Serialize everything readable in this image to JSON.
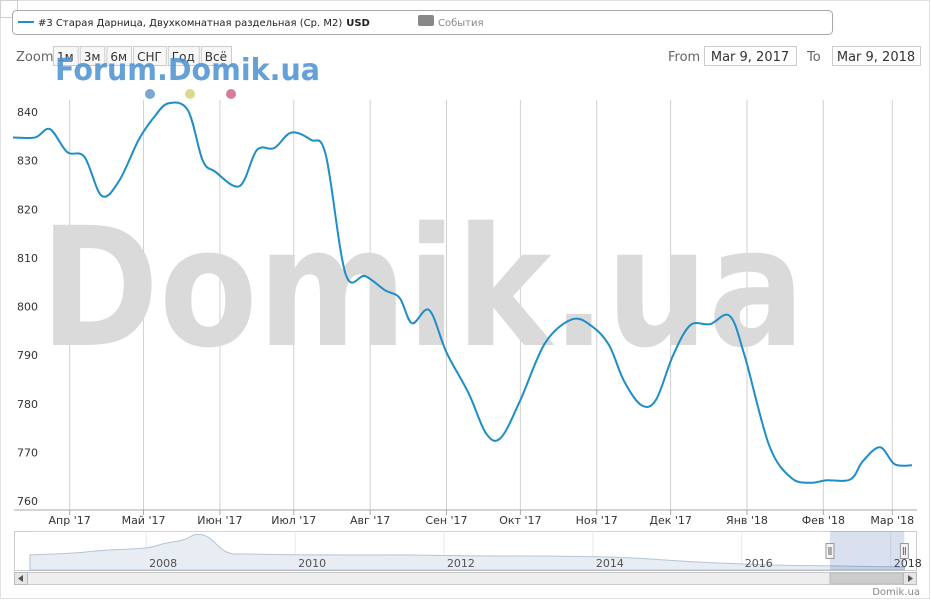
{
  "chart_data": [
    {
      "type": "line",
      "x": [
        "2017-03-09",
        "2017-03-18",
        "2017-03-24",
        "2017-03-31",
        "2017-04-07",
        "2017-04-14",
        "2017-04-21",
        "2017-04-29",
        "2017-05-05",
        "2017-05-11",
        "2017-05-19",
        "2017-05-25",
        "2017-05-30",
        "2017-06-09",
        "2017-06-16",
        "2017-06-23",
        "2017-06-30",
        "2017-07-08",
        "2017-07-14",
        "2017-07-22",
        "2017-07-30",
        "2017-08-07",
        "2017-08-13",
        "2017-08-18",
        "2017-08-25",
        "2017-09-01",
        "2017-09-10",
        "2017-09-17",
        "2017-09-23",
        "2017-10-01",
        "2017-10-11",
        "2017-10-22",
        "2017-10-30",
        "2017-11-06",
        "2017-11-12",
        "2017-11-19",
        "2017-11-25",
        "2017-12-02",
        "2017-12-09",
        "2017-12-17",
        "2017-12-25",
        "2017-12-31",
        "2018-01-10",
        "2018-01-19",
        "2018-01-27",
        "2018-02-02",
        "2018-02-12",
        "2018-02-17",
        "2018-02-24",
        "2018-03-02",
        "2018-03-09"
      ],
      "series": [
        {
          "name": "#3 Старая Дарница, Двухкомнатная раздельная (Ср. М2)",
          "unit": "USD",
          "color": "#1f8dc6",
          "values": [
            836,
            836,
            837.7,
            833,
            832,
            824,
            827,
            835.5,
            840,
            843,
            841.6,
            831.3,
            829,
            826,
            833.4,
            833.8,
            837,
            835.5,
            832.4,
            808,
            807.5,
            804.6,
            803,
            797.8,
            800.5,
            791.8,
            783.4,
            775.2,
            774.2,
            782,
            793.7,
            798.6,
            797.2,
            793.3,
            786,
            781,
            782,
            791.2,
            797.4,
            797.6,
            799.3,
            791.2,
            772.7,
            766,
            765,
            765.5,
            765.7,
            769.4,
            772.3,
            768.8,
            768.6
          ]
        }
      ],
      "xlim": [
        "2017-03-09",
        "2018-03-09"
      ],
      "xticks": [
        {
          "value": "2017-04-01",
          "label": "Апр '17"
        },
        {
          "value": "2017-05-01",
          "label": "Май '17"
        },
        {
          "value": "2017-06-01",
          "label": "Июн '17"
        },
        {
          "value": "2017-07-01",
          "label": "Июл '17"
        },
        {
          "value": "2017-08-01",
          "label": "Авг '17"
        },
        {
          "value": "2017-09-01",
          "label": "Сен '17"
        },
        {
          "value": "2017-10-01",
          "label": "Окт '17"
        },
        {
          "value": "2017-11-01",
          "label": "Ноя '17"
        },
        {
          "value": "2017-12-01",
          "label": "Дек '17"
        },
        {
          "value": "2018-01-01",
          "label": "Янв '18"
        },
        {
          "value": "2018-02-01",
          "label": "Фев '18"
        },
        {
          "value": "2018-03-01",
          "label": "Мар '18"
        }
      ],
      "ylim": [
        759.4,
        843.7
      ],
      "yticks": [
        760,
        770,
        780,
        790,
        800,
        810,
        820,
        830,
        840
      ],
      "grid": true,
      "events_legend": {
        "name": "События",
        "color": "#888888"
      }
    },
    {
      "type": "area",
      "x": [
        "2006-06-10",
        "2007-01-01",
        "2007-06-01",
        "2008-01-01",
        "2008-04-01",
        "2008-07-01",
        "2008-09-01",
        "2008-11-01",
        "2009-02-01",
        "2009-06-01",
        "2010-06-01",
        "2011-06-01",
        "2012-06-01",
        "2013-06-01",
        "2014-06-01",
        "2015-06-01",
        "2016-06-01",
        "2017-03-09",
        "2018-03-09"
      ],
      "values": [
        1450,
        1550,
        1700,
        1850,
        2100,
        2300,
        2600,
        2450,
        1600,
        1500,
        1450,
        1450,
        1400,
        1380,
        1300,
        1050,
        880,
        835,
        768
      ],
      "color": "#a9bbd0",
      "xlim": [
        "2006-06-10",
        "2018-05-10"
      ],
      "ylim": [
        600,
        2800
      ],
      "xticks": [
        {
          "value": "2008-01-01",
          "label": "2008"
        },
        {
          "value": "2010-01-01",
          "label": "2010"
        },
        {
          "value": "2012-01-01",
          "label": "2012"
        },
        {
          "value": "2014-01-01",
          "label": "2014"
        },
        {
          "value": "2016-01-01",
          "label": "2016"
        },
        {
          "value": "2018-01-01",
          "label": "2018"
        }
      ]
    }
  ],
  "range_selector": {
    "zoom_label": "Zoom",
    "buttons": [
      "1м",
      "3м",
      "6м",
      "СНГ",
      "Год",
      "Всё"
    ],
    "from_label": "From",
    "from": "Mar 9, 2017",
    "to_label": "To",
    "to": "Mar 9, 2018"
  },
  "watermarks": [
    "Forum.Domik.ua",
    "Domik.ua"
  ],
  "credit": "Domik.ua"
}
